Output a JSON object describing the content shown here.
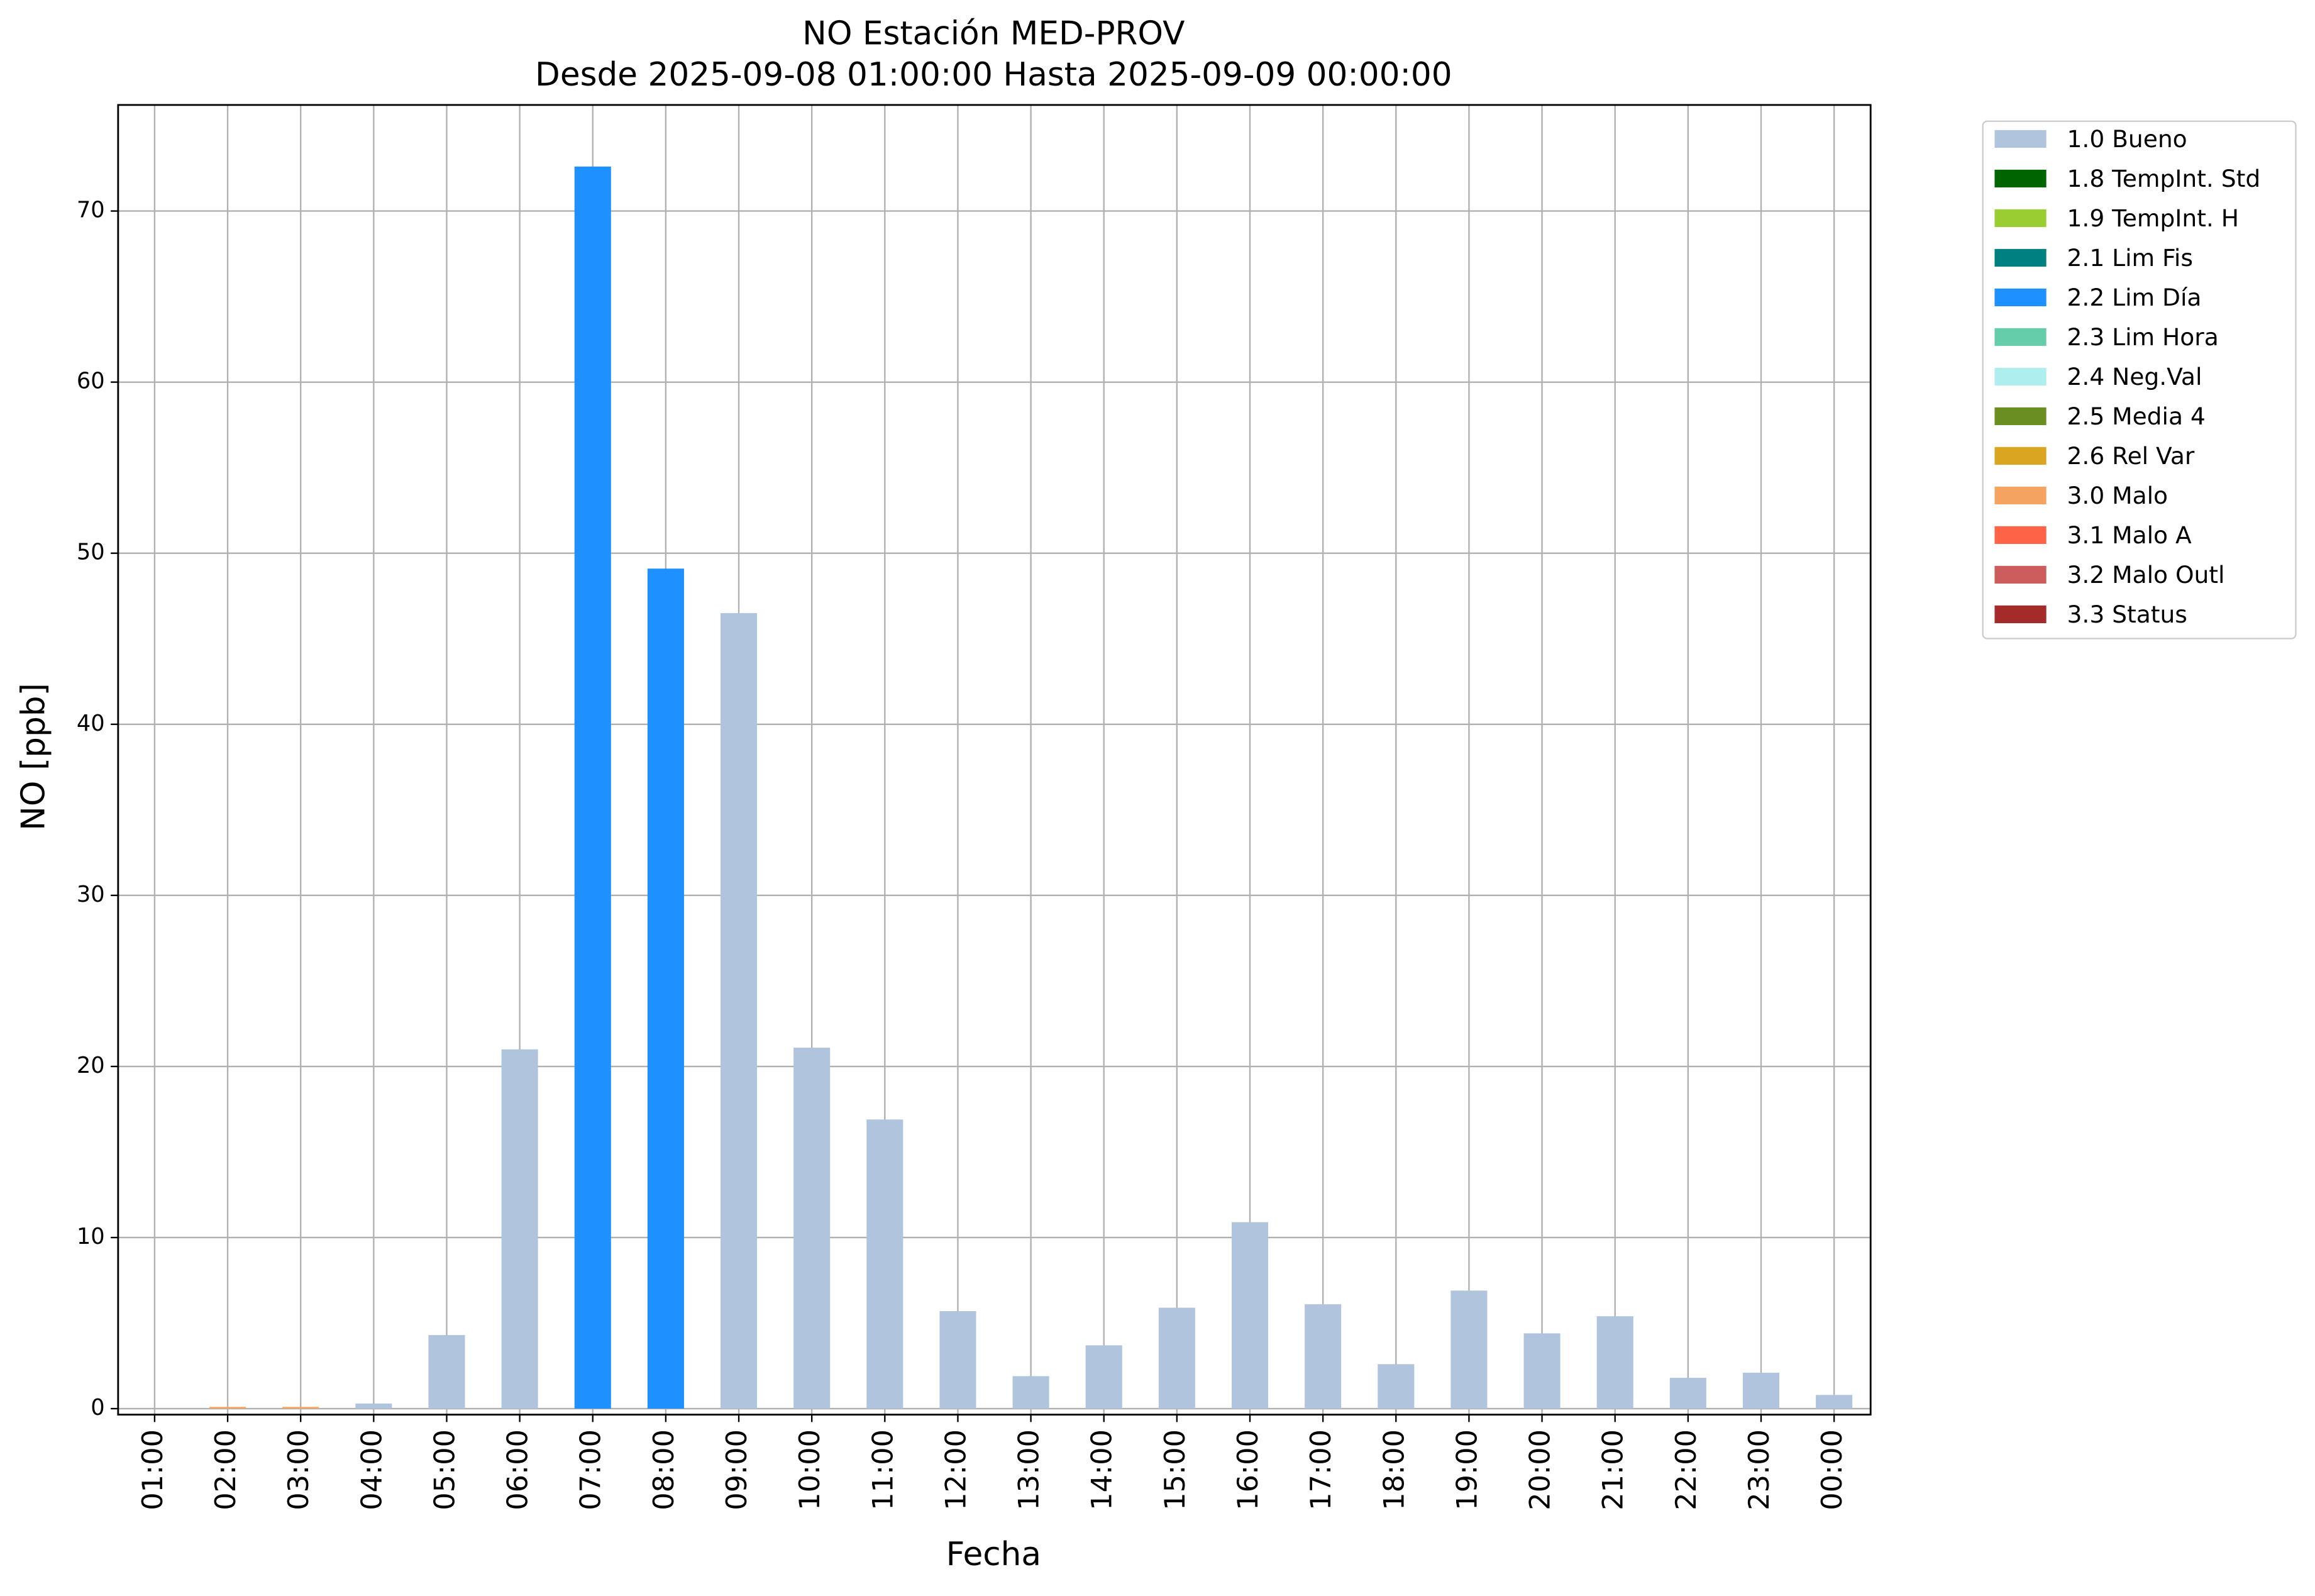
{
  "chart_data": {
    "type": "stacked-bar",
    "title": "NO Estación MED-PROV",
    "subtitle": "Desde 2025-09-08 01:00:00 Hasta 2025-09-09 00:00:00",
    "x_label": "Fecha",
    "y_label": "NO [ppb]",
    "categories": [
      "01:00",
      "02:00",
      "03:00",
      "04:00",
      "05:00",
      "06:00",
      "07:00",
      "08:00",
      "09:00",
      "10:00",
      "11:00",
      "12:00",
      "13:00",
      "14:00",
      "15:00",
      "16:00",
      "17:00",
      "18:00",
      "19:00",
      "20:00",
      "21:00",
      "22:00",
      "23:00",
      "00:00"
    ],
    "series": [
      {
        "name": "1.0 Bueno",
        "color": "#b0c4de",
        "values": [
          null,
          null,
          null,
          0.3,
          4.3,
          21.0,
          null,
          null,
          46.5,
          21.1,
          16.9,
          5.7,
          1.9,
          3.7,
          5.9,
          10.9,
          6.1,
          2.6,
          6.9,
          4.4,
          5.4,
          1.8,
          2.1,
          0.8
        ]
      },
      {
        "name": "1.8 TempInt. Std",
        "color": "#006400",
        "values": [
          null,
          null,
          null,
          null,
          null,
          null,
          null,
          null,
          null,
          null,
          null,
          null,
          null,
          null,
          null,
          null,
          null,
          null,
          null,
          null,
          null,
          null,
          null,
          null
        ]
      },
      {
        "name": "1.9 TempInt. H",
        "color": "#9acd32",
        "values": [
          null,
          null,
          null,
          null,
          null,
          null,
          null,
          null,
          null,
          null,
          null,
          null,
          null,
          null,
          null,
          null,
          null,
          null,
          null,
          null,
          null,
          null,
          null,
          null
        ]
      },
      {
        "name": "2.1 Lim Fis",
        "color": "#008080",
        "values": [
          null,
          null,
          null,
          null,
          null,
          null,
          null,
          null,
          null,
          null,
          null,
          null,
          null,
          null,
          null,
          null,
          null,
          null,
          null,
          null,
          null,
          null,
          null,
          null
        ]
      },
      {
        "name": "2.2 Lim Día",
        "color": "#1e90ff",
        "values": [
          null,
          null,
          null,
          null,
          null,
          null,
          72.6,
          49.1,
          null,
          null,
          null,
          null,
          null,
          null,
          null,
          null,
          null,
          null,
          null,
          null,
          null,
          null,
          null,
          null
        ]
      },
      {
        "name": "2.3 Lim Hora",
        "color": "#66cdaa",
        "values": [
          null,
          null,
          null,
          null,
          null,
          null,
          null,
          null,
          null,
          null,
          null,
          null,
          null,
          null,
          null,
          null,
          null,
          null,
          null,
          null,
          null,
          null,
          null,
          null
        ]
      },
      {
        "name": "2.4 Neg.Val",
        "color": "#afeeee",
        "values": [
          null,
          null,
          null,
          null,
          null,
          null,
          null,
          null,
          null,
          null,
          null,
          null,
          null,
          null,
          null,
          null,
          null,
          null,
          null,
          null,
          null,
          null,
          null,
          null
        ]
      },
      {
        "name": "2.5 Media 4",
        "color": "#6b8e23",
        "values": [
          null,
          null,
          null,
          null,
          null,
          null,
          null,
          null,
          null,
          null,
          null,
          null,
          null,
          null,
          null,
          null,
          null,
          null,
          null,
          null,
          null,
          null,
          null,
          null
        ]
      },
      {
        "name": "2.6 Rel Var",
        "color": "#daa520",
        "values": [
          null,
          null,
          null,
          null,
          null,
          null,
          null,
          null,
          null,
          null,
          null,
          null,
          null,
          null,
          null,
          null,
          null,
          null,
          null,
          null,
          null,
          null,
          null,
          null
        ]
      },
      {
        "name": "3.0 Malo",
        "color": "#f4a460",
        "values": [
          null,
          0.1,
          0.1,
          null,
          null,
          null,
          null,
          null,
          null,
          null,
          null,
          null,
          null,
          null,
          null,
          null,
          null,
          null,
          null,
          null,
          null,
          null,
          null,
          null
        ]
      },
      {
        "name": "3.1 Malo A",
        "color": "#ff6347",
        "values": [
          null,
          null,
          null,
          null,
          null,
          null,
          null,
          null,
          null,
          null,
          null,
          null,
          null,
          null,
          null,
          null,
          null,
          null,
          null,
          null,
          null,
          null,
          null,
          null
        ]
      },
      {
        "name": "3.2 Malo Outl",
        "color": "#cd5c5c",
        "values": [
          null,
          null,
          null,
          null,
          null,
          null,
          null,
          null,
          null,
          null,
          null,
          null,
          null,
          null,
          null,
          null,
          null,
          null,
          null,
          null,
          null,
          null,
          null,
          null
        ]
      },
      {
        "name": "3.3 Status",
        "color": "#a52a2a",
        "values": [
          null,
          null,
          null,
          null,
          null,
          null,
          null,
          null,
          null,
          null,
          null,
          null,
          null,
          null,
          null,
          null,
          null,
          null,
          null,
          null,
          null,
          null,
          null,
          null
        ]
      }
    ],
    "ylim": [
      -0.35,
      76.2
    ],
    "yticks": [
      0,
      10,
      20,
      30,
      40,
      50,
      60,
      70
    ],
    "grid": true,
    "legend": "outside-right"
  }
}
